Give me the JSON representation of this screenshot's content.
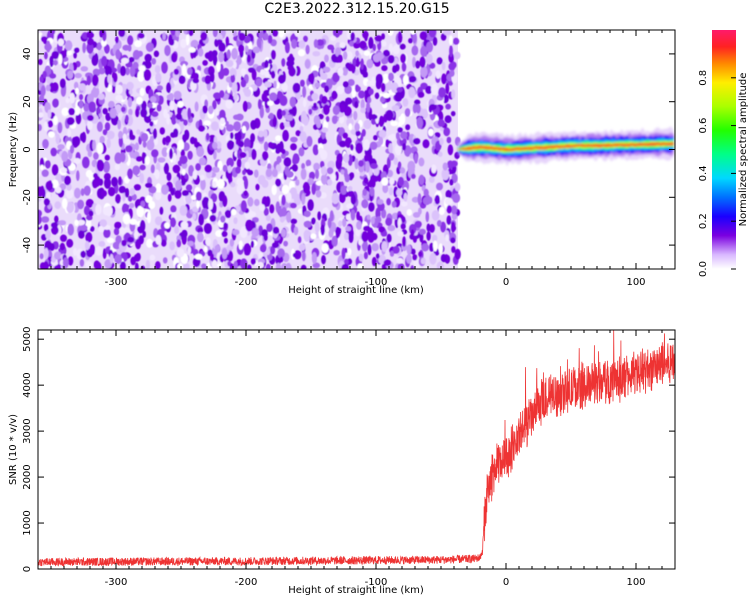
{
  "title": "C2E3.2022.312.15.20.G15",
  "chart_data": [
    {
      "type": "heatmap",
      "title": "C2E3.2022.312.15.20.G15",
      "xlabel": "Height of straight line (km)",
      "ylabel": "Frequency (Hz)",
      "xlim": [
        -360,
        130
      ],
      "ylim": [
        -50,
        50
      ],
      "x_ticks": [
        -300,
        -200,
        -100,
        0,
        100
      ],
      "y_ticks": [
        -40,
        -20,
        0,
        20,
        40
      ],
      "noise_region_x": [
        -360,
        -37
      ],
      "signal_band": {
        "x_range": [
          -37,
          130
        ],
        "center_freq_hz": [
          [
            -37,
            0
          ],
          [
            -20,
            1
          ],
          [
            0,
            0
          ],
          [
            50,
            1.5
          ],
          [
            100,
            2
          ],
          [
            130,
            2.5
          ]
        ]
      },
      "colorbar": {
        "label": "Normalized spectral amplitude",
        "range": [
          0,
          1
        ],
        "ticks": [
          0.0,
          0.2,
          0.4,
          0.6,
          0.8
        ]
      }
    },
    {
      "type": "line",
      "xlabel": "Height of straight line (km)",
      "ylabel": "SNR (10 * v/v)",
      "xlim": [
        -360,
        130
      ],
      "ylim": [
        0,
        5200
      ],
      "x_ticks": [
        -300,
        -200,
        -100,
        0,
        100
      ],
      "y_ticks": [
        0,
        1000,
        2000,
        3000,
        4000,
        5000
      ],
      "color": "#ee3333",
      "series": [
        {
          "x": [
            -360,
            -300,
            -200,
            -100,
            -50,
            -25,
            -20,
            -18,
            -17,
            -15,
            -12,
            -10,
            -5,
            0,
            10,
            20,
            30,
            40,
            50,
            60,
            70,
            80,
            90,
            100,
            110,
            120,
            130
          ],
          "y": [
            150,
            160,
            170,
            190,
            200,
            220,
            250,
            400,
            1000,
            1500,
            1900,
            2100,
            2300,
            2400,
            2900,
            3300,
            3700,
            3800,
            3900,
            4000,
            4050,
            4100,
            4150,
            4250,
            4350,
            4450,
            4500
          ]
        }
      ]
    }
  ]
}
